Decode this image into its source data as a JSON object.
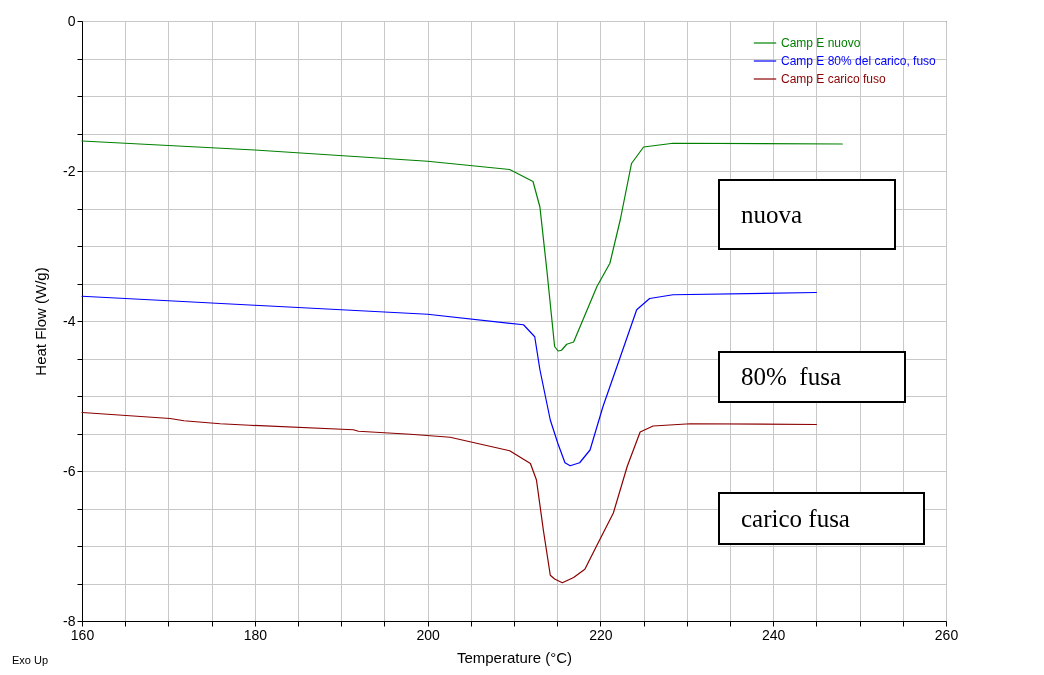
{
  "chart_data": {
    "type": "line",
    "xlabel": "Temperature (°C)",
    "ylabel": "Heat Flow (W/g)",
    "xlim": [
      160,
      260
    ],
    "ylim": [
      -8,
      0
    ],
    "xticks": [
      160,
      {
        "value": 165,
        "label": null
      },
      {
        "value": 170,
        "label": null
      },
      {
        "value": 175,
        "label": null
      },
      180,
      {
        "value": 185,
        "label": null
      },
      {
        "value": 190,
        "label": null
      },
      {
        "value": 195,
        "label": null
      },
      200,
      {
        "value": 205,
        "label": null
      },
      {
        "value": 210,
        "label": null
      },
      {
        "value": 215,
        "label": null
      },
      220,
      {
        "value": 225,
        "label": null
      },
      {
        "value": 230,
        "label": null
      },
      {
        "value": 235,
        "label": null
      },
      240,
      {
        "value": 245,
        "label": null
      },
      {
        "value": 250,
        "label": null
      },
      {
        "value": 255,
        "label": null
      },
      260
    ],
    "yticks": [
      -8,
      {
        "value": -7.5,
        "label": null
      },
      {
        "value": -7,
        "label": null
      },
      {
        "value": -6.5,
        "label": null
      },
      -6,
      {
        "value": -5.5,
        "label": null
      },
      {
        "value": -5,
        "label": null
      },
      {
        "value": -4.5,
        "label": null
      },
      -4,
      {
        "value": -3.5,
        "label": null
      },
      {
        "value": -3,
        "label": null
      },
      {
        "value": -2.5,
        "label": null
      },
      -2,
      {
        "value": -1.5,
        "label": null
      },
      {
        "value": -1,
        "label": null
      },
      {
        "value": -0.5,
        "label": null
      },
      0
    ],
    "grid": true,
    "legend": "top right",
    "marker": "none",
    "line_style": "solid",
    "series": [
      {
        "name": "Camp E nuovo",
        "color": "#008000",
        "x": [
          160,
          180,
          200,
          209.5,
          212.2,
          213.0,
          213.8,
          214.7,
          215.1,
          215.5,
          216.1,
          216.9,
          219.6,
          221.1,
          222.3,
          223.6,
          225.0,
          228.4,
          248
        ],
        "values": [
          -1.6,
          -1.72,
          -1.87,
          -1.98,
          -2.14,
          -2.48,
          -3.32,
          -4.34,
          -4.4,
          -4.39,
          -4.31,
          -4.28,
          -3.54,
          -3.23,
          -2.65,
          -1.9,
          -1.68,
          -1.63,
          -1.64
        ]
      },
      {
        "name": "Camp E 80% del carico, fuso",
        "color": "#0000ff",
        "x": [
          160,
          180,
          200,
          211.1,
          212.4,
          213.0,
          214.2,
          215.1,
          215.9,
          216.5,
          217.6,
          218.8,
          220.3,
          222.3,
          224.2,
          225.7,
          228.4,
          245
        ],
        "values": [
          -3.67,
          -3.79,
          -3.91,
          -4.05,
          -4.21,
          -4.65,
          -5.32,
          -5.64,
          -5.89,
          -5.93,
          -5.89,
          -5.72,
          -5.14,
          -4.48,
          -3.85,
          -3.7,
          -3.65,
          -3.62
        ]
      },
      {
        "name": "Camp E carico fuso",
        "color": "#8b0000",
        "x": [
          160,
          170.2,
          171.8,
          176,
          179.4,
          191.4,
          192,
          198,
          202.6,
          209.5,
          211.9,
          212.6,
          213.4,
          214.2,
          214.7,
          215.6,
          216.9,
          218.2,
          219.6,
          221.5,
          223.1,
          224.6,
          226.1,
          230.4,
          245
        ],
        "values": [
          -5.22,
          -5.3,
          -5.33,
          -5.37,
          -5.39,
          -5.45,
          -5.47,
          -5.51,
          -5.55,
          -5.73,
          -5.9,
          -6.12,
          -6.79,
          -7.39,
          -7.44,
          -7.49,
          -7.42,
          -7.31,
          -6.99,
          -6.56,
          -5.94,
          -5.48,
          -5.4,
          -5.37,
          -5.38
        ]
      }
    ],
    "annotations": [
      "nuova",
      "80%  fusa",
      "carico fusa",
      "Exo Up"
    ]
  }
}
